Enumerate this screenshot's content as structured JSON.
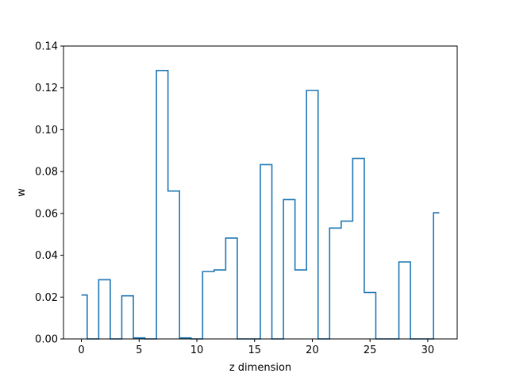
{
  "chart_data": {
    "type": "line",
    "drawstyle": "steps-mid",
    "title": "",
    "xlabel": "z dimension",
    "ylabel": "w",
    "xlim": [
      -1.55,
      32.55
    ],
    "ylim": [
      0,
      0.14
    ],
    "xticks": [
      0,
      5,
      10,
      15,
      20,
      25,
      30
    ],
    "yticks": [
      0.0,
      0.02,
      0.04,
      0.06,
      0.08,
      0.1,
      0.12,
      0.14
    ],
    "ytick_labels": [
      "0.00",
      "0.02",
      "0.04",
      "0.06",
      "0.08",
      "0.10",
      "0.12",
      "0.14"
    ],
    "grid": false,
    "line_color": "#1f77b4",
    "series": [
      {
        "x": [
          0,
          1,
          2,
          3,
          4,
          5,
          6,
          7,
          8,
          9,
          10,
          11,
          12,
          13,
          14,
          15,
          16,
          17,
          18,
          19,
          20,
          21,
          22,
          23,
          24,
          25,
          26,
          27,
          28,
          29,
          30,
          31
        ],
        "values": [
          0.021,
          0.0,
          0.0283,
          0.0,
          0.0206,
          0.0005,
          0.0,
          0.1283,
          0.0707,
          0.0005,
          0.0,
          0.0322,
          0.033,
          0.0482,
          0.0,
          0.0,
          0.0833,
          0.0,
          0.0666,
          0.033,
          0.1188,
          0.0,
          0.053,
          0.0563,
          0.0863,
          0.0222,
          0.0,
          0.0,
          0.0368,
          0.0,
          0.0,
          0.0603
        ]
      }
    ]
  }
}
